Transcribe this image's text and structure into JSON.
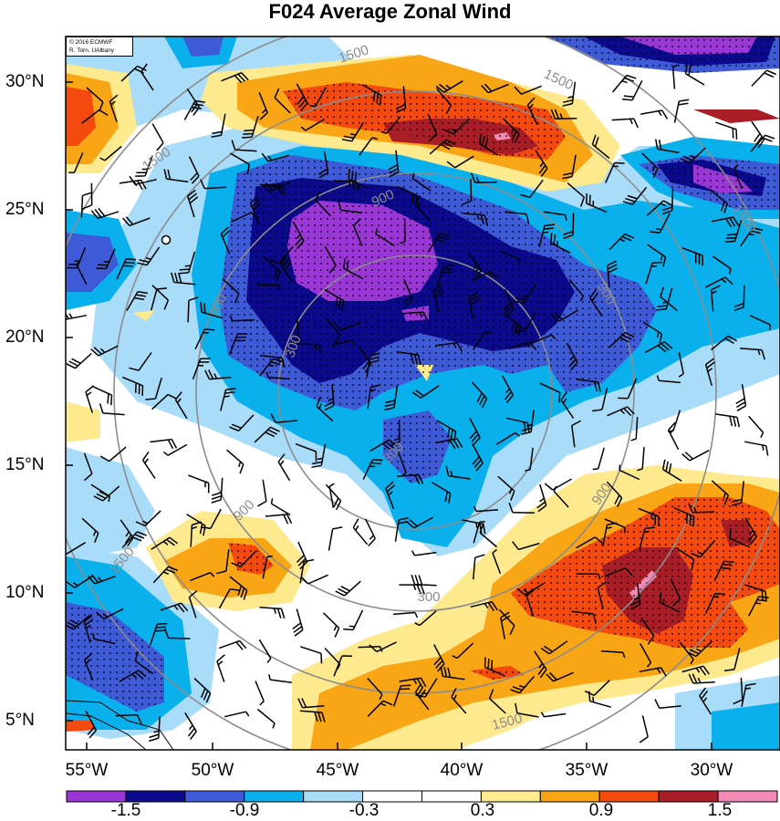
{
  "title": "F024 Average Zonal Wind",
  "credit": {
    "line1": "© 2016 ECMWF",
    "line2": "R. Torn, UAlbany"
  },
  "lat_labels": [
    "30°N",
    "25°N",
    "20°N",
    "15°N",
    "10°N",
    "5°N"
  ],
  "lon_labels": [
    "55°W",
    "50°W",
    "45°W",
    "40°W",
    "35°W",
    "30°W"
  ],
  "colorbar": {
    "labels": [
      "-1.5",
      "-0.9",
      "-0.3",
      "0.3",
      "0.9",
      "1.5"
    ],
    "colors": [
      "#9a36d6",
      "#0b0a8c",
      "#3f5ad6",
      "#0ab0ec",
      "#a8dcf8",
      "#ffffff",
      "#ffffff",
      "#fde98e",
      "#f8a516",
      "#f44a10",
      "#a91d27",
      "#f28ab8"
    ]
  },
  "contour_labels": [
    "1500",
    "1500",
    "1500",
    "1500",
    "1500",
    "1500",
    "900",
    "900",
    "900",
    "900",
    "900",
    "300",
    "300",
    "300"
  ],
  "colors": {
    "dark_purple": "#9a36d6",
    "navy": "#0b0a8c",
    "royal_blue": "#3f5ad6",
    "cyan": "#0ab0ec",
    "light_blue": "#a8dcf8",
    "yellow": "#fde98e",
    "orange": "#f8a516",
    "red_orange": "#f44a10",
    "dark_red": "#a91d27",
    "pink": "#f28ab8",
    "contour_gray": "#8c8c8c"
  }
}
